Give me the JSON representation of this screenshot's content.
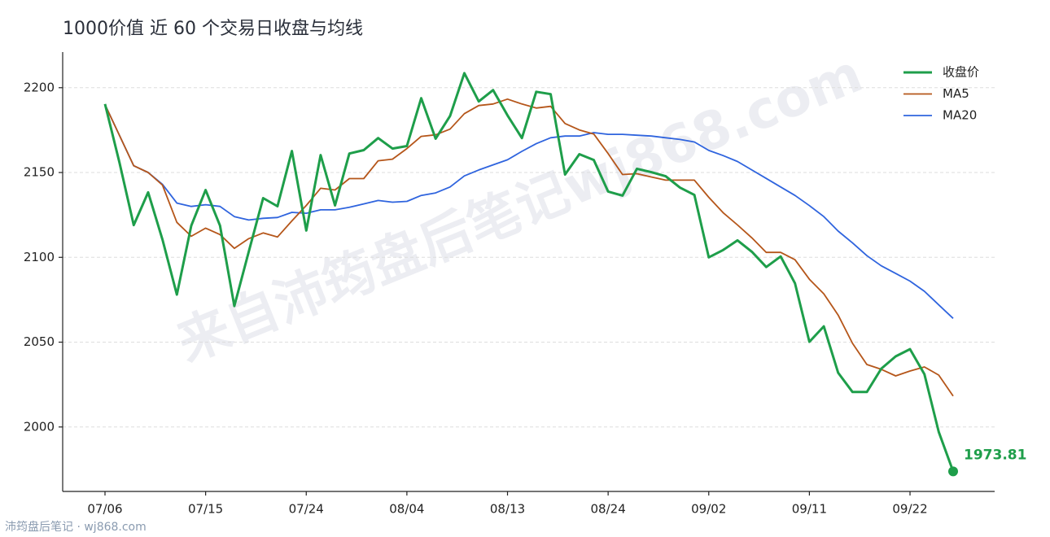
{
  "chart_data": {
    "type": "line",
    "title": "1000价值 近 60 个交易日收盘与均线",
    "watermark": "来自沛筠盘后笔记wj868.com",
    "footer": "沛筠盘后笔记 · wj868.com",
    "categories": [
      "07/06",
      null,
      null,
      null,
      null,
      null,
      null,
      "07/15",
      null,
      null,
      null,
      null,
      null,
      null,
      "07/24",
      null,
      null,
      null,
      null,
      null,
      null,
      "08/04",
      null,
      null,
      null,
      null,
      null,
      null,
      "08/13",
      null,
      null,
      null,
      null,
      null,
      null,
      "08/24",
      null,
      null,
      null,
      null,
      null,
      null,
      "09/02",
      null,
      null,
      null,
      null,
      null,
      null,
      "09/11",
      null,
      null,
      null,
      null,
      null,
      null,
      "09/22",
      null,
      null,
      null
    ],
    "series": [
      {
        "name": "收盘价",
        "color": "#1e9e4a",
        "values": [
          2190.4,
          2156,
          2119,
          2138.3,
          2110.5,
          2078,
          2118.7,
          2139.7,
          2118.7,
          2071.3,
          2103.3,
          2134.9,
          2130.1,
          2162.7,
          2115.8,
          2160.3,
          2130.6,
          2161.2,
          2163.2,
          2170.3,
          2164.1,
          2165.6,
          2193.8,
          2169.9,
          2183.3,
          2208.6,
          2191.9,
          2198.6,
          2183.7,
          2170.3,
          2197.6,
          2196.2,
          2148.8,
          2160.8,
          2157.4,
          2138.8,
          2136.4,
          2152.2,
          2150.2,
          2147.8,
          2141.1,
          2136.8,
          2100,
          2104.3,
          2110,
          2103.3,
          2094.3,
          2100.5,
          2084.7,
          2050.2,
          2059.3,
          2032,
          2020.6,
          2020.6,
          2034.4,
          2041.6,
          2045.9,
          2031.1,
          1997.1,
          1973.81
        ]
      },
      {
        "name": "MA5",
        "color": "#b5561a",
        "values": [
          2190,
          2172,
          2154,
          2150,
          2142.6,
          2120.6,
          2112.4,
          2117.2,
          2113.4,
          2105.3,
          2111,
          2114.4,
          2112,
          2121.5,
          2130.6,
          2140.7,
          2139.7,
          2146.4,
          2146.4,
          2156.9,
          2157.9,
          2164.1,
          2171.3,
          2172.2,
          2175.6,
          2184.7,
          2189.5,
          2190.4,
          2193.3,
          2190.4,
          2188,
          2189,
          2178.9,
          2175.1,
          2172.7,
          2161.2,
          2148.8,
          2149.3,
          2147.4,
          2145.5,
          2145.5,
          2145.5,
          2135.4,
          2126.3,
          2119.1,
          2111.5,
          2102.9,
          2102.9,
          2098.6,
          2087.1,
          2078.5,
          2066,
          2049.3,
          2036.8,
          2034,
          2030.1,
          2033,
          2035.4,
          2030.6,
          2018.2
        ]
      },
      {
        "name": "MA20",
        "color": "#2f64de",
        "values": [
          2190,
          2172,
          2154,
          2150,
          2143,
          2132,
          2130,
          2131,
          2130,
          2124,
          2122,
          2123,
          2123.5,
          2126.5,
          2126,
          2128,
          2128,
          2129.5,
          2131.5,
          2133.5,
          2132.5,
          2133,
          2136.5,
          2138,
          2141.5,
          2148,
          2151.5,
          2154.5,
          2157.5,
          2162.5,
          2167,
          2170.5,
          2171.5,
          2171.5,
          2173.5,
          2172.5,
          2172.5,
          2172,
          2171.5,
          2170.5,
          2169.5,
          2168,
          2163,
          2160,
          2156.5,
          2151.5,
          2146.5,
          2141.5,
          2136.5,
          2130.5,
          2124,
          2115.5,
          2108.5,
          2101,
          2095,
          2090.5,
          2086,
          2080,
          2072,
          2064
        ]
      }
    ],
    "ylim": [
      1962,
      2221
    ],
    "yticks": [
      2000,
      2050,
      2100,
      2150,
      2200
    ],
    "grid": true,
    "legend": "upper right"
  }
}
